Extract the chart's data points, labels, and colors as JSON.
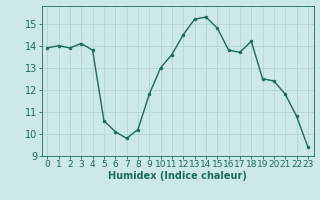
{
  "x": [
    0,
    1,
    2,
    3,
    4,
    5,
    6,
    7,
    8,
    9,
    10,
    11,
    12,
    13,
    14,
    15,
    16,
    17,
    18,
    19,
    20,
    21,
    22,
    23
  ],
  "y": [
    13.9,
    14.0,
    13.9,
    14.1,
    13.8,
    10.6,
    10.1,
    9.8,
    10.2,
    11.8,
    13.0,
    13.6,
    14.5,
    15.2,
    15.3,
    14.8,
    13.8,
    13.7,
    14.2,
    12.5,
    12.4,
    11.8,
    10.8,
    9.4
  ],
  "line_color": "#1a6b5a",
  "marker": "o",
  "marker_size": 2.0,
  "linewidth": 1.0,
  "background_color": "#cce8e8",
  "grid_color": "#b0d0d0",
  "xlabel": "Humidex (Indice chaleur)",
  "xlim": [
    -0.5,
    23.5
  ],
  "ylim": [
    9,
    15.8
  ],
  "yticks": [
    9,
    10,
    11,
    12,
    13,
    14,
    15
  ],
  "xticks": [
    0,
    1,
    2,
    3,
    4,
    5,
    6,
    7,
    8,
    9,
    10,
    11,
    12,
    13,
    14,
    15,
    16,
    17,
    18,
    19,
    20,
    21,
    22,
    23
  ],
  "tick_color": "#1a6b5a",
  "label_color": "#1a6b5a",
  "xlabel_fontsize": 7,
  "tick_fontsize": 6.5,
  "ytick_fontsize": 7
}
